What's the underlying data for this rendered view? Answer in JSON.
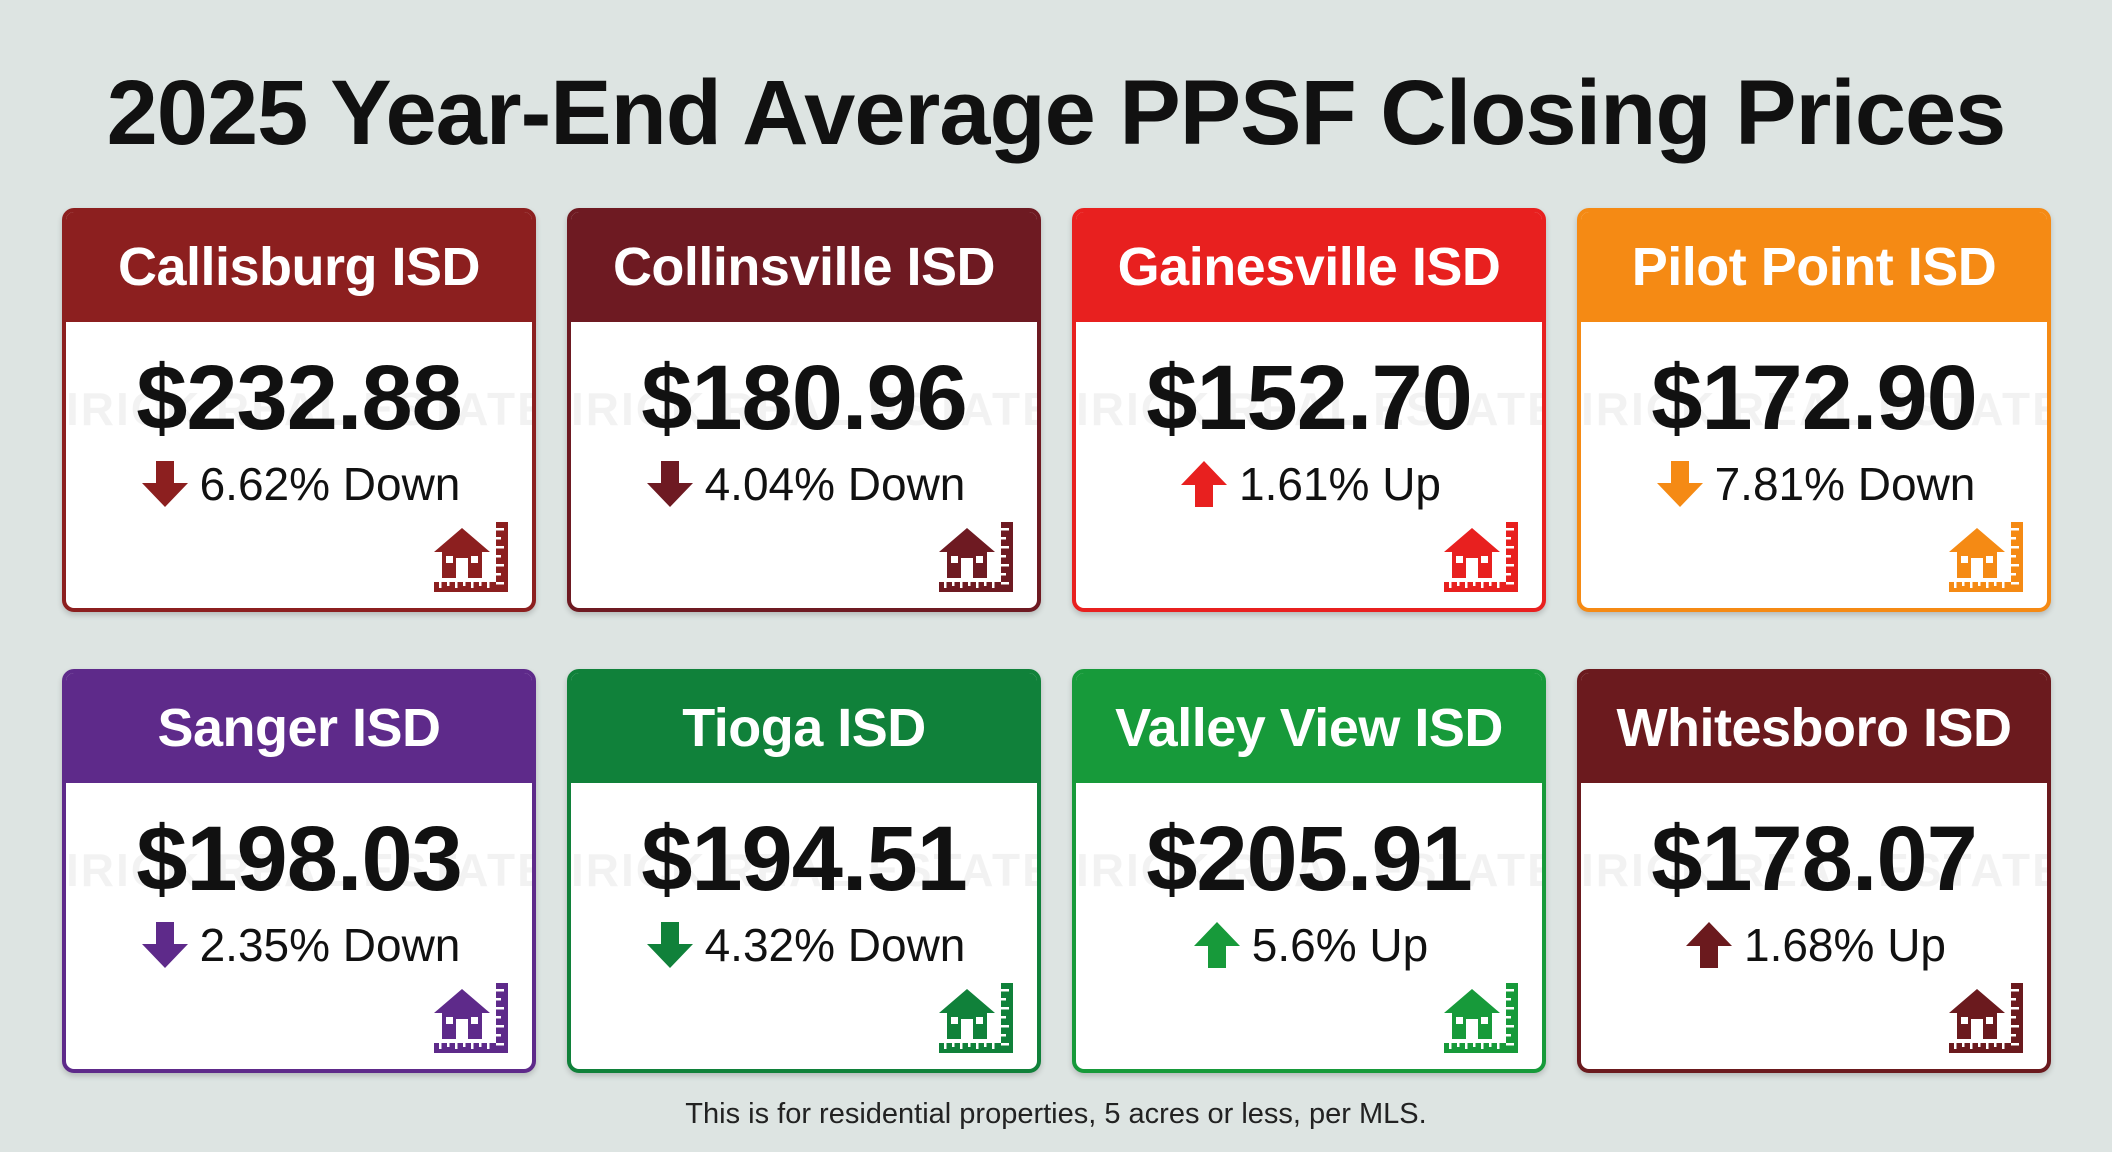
{
  "title": "2025 Year-End Average PPSF Closing Prices",
  "watermark": "IRICK REAL ESTATE GROUP",
  "footnote": "This is for residential properties, 5 acres or less, per MLS.",
  "icons": {
    "arrow": "arrow-icon",
    "house": "house-ruler-icon"
  },
  "cards": [
    {
      "name": "Callisburg ISD",
      "price": "$232.88",
      "change": "6.62% Down",
      "direction": "down",
      "color": "#8c1f1f",
      "arrow_color": "#8c1f1f"
    },
    {
      "name": "Collinsville ISD",
      "price": "$180.96",
      "change": "4.04% Down",
      "direction": "down",
      "color": "#6e1a22",
      "arrow_color": "#6e1a22"
    },
    {
      "name": "Gainesville ISD",
      "price": "$152.70",
      "change": "1.61% Up",
      "direction": "up",
      "color": "#e8201f",
      "arrow_color": "#e8201f"
    },
    {
      "name": "Pilot Point ISD",
      "price": "$172.90",
      "change": "7.81% Down",
      "direction": "down",
      "color": "#f58a14",
      "arrow_color": "#f58a14"
    },
    {
      "name": "Sanger ISD",
      "price": "$198.03",
      "change": "2.35% Down",
      "direction": "down",
      "color": "#5e2a8a",
      "arrow_color": "#5e2a8a"
    },
    {
      "name": "Tioga ISD",
      "price": "$194.51",
      "change": "4.32% Down",
      "direction": "down",
      "color": "#10813a",
      "arrow_color": "#10813a"
    },
    {
      "name": "Valley View ISD",
      "price": "$205.91",
      "change": "5.6% Up",
      "direction": "up",
      "color": "#179a3a",
      "arrow_color": "#179a3a"
    },
    {
      "name": "Whitesboro ISD",
      "price": "$178.07",
      "change": "1.68% Up",
      "direction": "up",
      "color": "#6b1a1e",
      "arrow_color": "#6b1a1e"
    }
  ]
}
